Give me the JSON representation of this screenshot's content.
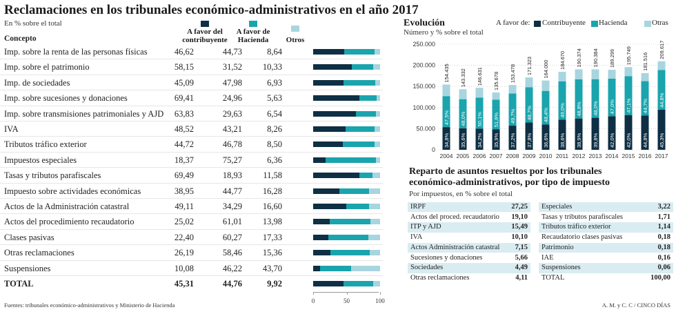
{
  "title": "Reclamaciones en los tribunales económico-administrativos en el año 2017",
  "subtitle": "En % sobre el total",
  "colors": {
    "contribuyente": "#0e2f44",
    "hacienda": "#1aa4ad",
    "otras": "#a8d5df",
    "rowalt": "#d9ecf1"
  },
  "headers": {
    "concepto": "Concepto",
    "contribuyente": "A favor del contribuyente",
    "hacienda": "A favor de Hacienda",
    "otros": "Otros"
  },
  "rows": [
    {
      "name": "Imp. sobre la renta de las personas físicas",
      "c": "46,62",
      "h": "44,73",
      "o": "8,64"
    },
    {
      "name": "Imp. sobre el patrimonio",
      "c": "58,15",
      "h": "31,52",
      "o": "10,33"
    },
    {
      "name": "Imp. de sociedades",
      "c": "45,09",
      "h": "47,98",
      "o": "6,93"
    },
    {
      "name": "Imp. sobre sucesiones y donaciones",
      "c": "69,41",
      "h": "24,96",
      "o": "5,63"
    },
    {
      "name": "Imp. sobre transmisiones patrimoniales y AJD",
      "c": "63,83",
      "h": "29,63",
      "o": "6,54"
    },
    {
      "name": "IVA",
      "c": "48,52",
      "h": "43,21",
      "o": "8,26"
    },
    {
      "name": "Tributos tráfico exterior",
      "c": "44,72",
      "h": "46,78",
      "o": "8,50"
    },
    {
      "name": "Impuestos especiales",
      "c": "18,37",
      "h": "75,27",
      "o": "6,36"
    },
    {
      "name": "Tasas y tributos parafiscales",
      "c": "69,49",
      "h": "18,93",
      "o": "11,58"
    },
    {
      "name": "Impuesto sobre actividades económicas",
      "c": "38,95",
      "h": "44,77",
      "o": "16,28"
    },
    {
      "name": "Actos de la Administración catastral",
      "c": "49,11",
      "h": "34,29",
      "o": "16,60"
    },
    {
      "name": "Actos del procedimiento recaudatorio",
      "c": "25,02",
      "h": "61,01",
      "o": "13,98"
    },
    {
      "name": "Clases pasivas",
      "c": "22,40",
      "h": "60,27",
      "o": "17,33"
    },
    {
      "name": "Otras reclamaciones",
      "c": "26,19",
      "h": "58,46",
      "o": "15,36"
    },
    {
      "name": "Suspensiones",
      "c": "10,08",
      "h": "46,22",
      "o": "43,70"
    },
    {
      "name": "TOTAL",
      "c": "45,31",
      "h": "44,76",
      "o": "9,92"
    }
  ],
  "chart_data": [
    {
      "type": "bar",
      "stacked": true,
      "orientation": "horizontal",
      "categories": [
        "Imp. sobre la renta de las personas físicas",
        "Imp. sobre el patrimonio",
        "Imp. de sociedades",
        "Imp. sobre sucesiones y donaciones",
        "Imp. sobre transmisiones patrimoniales y AJD",
        "IVA",
        "Tributos tráfico exterior",
        "Impuestos especiales",
        "Tasas y tributos parafiscales",
        "Impuesto sobre actividades económicas",
        "Actos de la Administración catastral",
        "Actos del procedimiento recaudatorio",
        "Clases pasivas",
        "Otras reclamaciones",
        "Suspensiones",
        "TOTAL"
      ],
      "series": [
        {
          "name": "A favor del contribuyente",
          "values": [
            46.62,
            58.15,
            45.09,
            69.41,
            63.83,
            48.52,
            44.72,
            18.37,
            69.49,
            38.95,
            49.11,
            25.02,
            22.4,
            26.19,
            10.08,
            45.31
          ]
        },
        {
          "name": "A favor de Hacienda",
          "values": [
            44.73,
            31.52,
            47.98,
            24.96,
            29.63,
            43.21,
            46.78,
            75.27,
            18.93,
            44.77,
            34.29,
            61.01,
            60.27,
            58.46,
            46.22,
            44.76
          ]
        },
        {
          "name": "Otros",
          "values": [
            8.64,
            10.33,
            6.93,
            5.63,
            6.54,
            8.26,
            8.5,
            6.36,
            11.58,
            16.28,
            16.6,
            13.98,
            17.33,
            15.36,
            43.7,
            9.92
          ]
        }
      ],
      "xlim": [
        0,
        100
      ],
      "xticks": [
        "0",
        "50",
        "100"
      ]
    },
    {
      "type": "bar",
      "stacked": true,
      "title": "Evolución",
      "subtitle": "Número y % sobre el total",
      "legend_title": "A favor de:",
      "legend": [
        "Contribuyente",
        "Hacienda",
        "Otras"
      ],
      "categories": [
        "2004",
        "2005",
        "2006",
        "2007",
        "2008",
        "2009",
        "2010",
        "2011",
        "2012",
        "2013",
        "2014",
        "2015",
        "2016",
        "2017"
      ],
      "totals": [
        154435,
        143332,
        146631,
        135678,
        153478,
        171323,
        164000,
        184670,
        190374,
        190384,
        189299,
        195749,
        181516,
        209617
      ],
      "totals_labels": [
        "154.435",
        "143.332",
        "146.631",
        "135.678",
        "153.478",
        "171.323",
        "164.000",
        "184.670",
        "190.374",
        "190.384",
        "189.299",
        "195.749",
        "181.516",
        "209.617"
      ],
      "contribuyente_pct": [
        34.8,
        35.6,
        34.2,
        35.9,
        37.2,
        37.8,
        36.6,
        38.6,
        38.9,
        39.8,
        42.0,
        42.0,
        44.8,
        45.3
      ],
      "contribuyente_labels": [
        "34,8%",
        "35,6%",
        "34,2%",
        "35,9%",
        "37,2%",
        "37,8%",
        "36,6%",
        "38,6%",
        "38,9%",
        "39,8%",
        "42,0%",
        "42,0%",
        "44,8%",
        "45,3%"
      ],
      "hacienda_pct": [
        47.5,
        48.0,
        50.1,
        51.6,
        49.7,
        48.7,
        48.4,
        49.0,
        48.8,
        48.0,
        47.0,
        47.1,
        44.7,
        44.8
      ],
      "hacienda_labels": [
        "47,5%",
        "48,0%",
        "50,1%",
        "51,6%",
        "49,7%",
        "48,7%",
        "48,4%",
        "49,0%",
        "48,8%",
        "48,0%",
        "47,0%",
        "47,1%",
        "44,7%",
        "44,8%"
      ],
      "ylim": [
        0,
        250000
      ],
      "yticks": [
        "0",
        "50.000",
        "100.000",
        "150.000",
        "200.000",
        "250.000"
      ]
    }
  ],
  "reparto": {
    "title": "Reparto de asuntos resueltos por los tribunales económico-administrativos, por tipo de impuesto",
    "subtitle": "Por impuestos, en % sobre el total",
    "left": [
      {
        "name": "IRPF",
        "value": "27,25"
      },
      {
        "name": "Actos del proced. recaudatorio",
        "value": "19,10"
      },
      {
        "name": "ITP y AJD",
        "value": "15,49"
      },
      {
        "name": "IVA",
        "value": "10,10"
      },
      {
        "name": "Actos Administración catastral",
        "value": "7,15"
      },
      {
        "name": "Sucesiones y donaciones",
        "value": "5,66"
      },
      {
        "name": "Sociedades",
        "value": "4,49"
      },
      {
        "name": "Otras reclamaciones",
        "value": "4,11"
      }
    ],
    "right": [
      {
        "name": "Especiales",
        "value": "3,22"
      },
      {
        "name": "Tasas y tributos parafiscales",
        "value": "1,71"
      },
      {
        "name": "Tributos tráfico exterior",
        "value": "1,14"
      },
      {
        "name": "Recaudatorio clases pasivas",
        "value": "0,18"
      },
      {
        "name": "Patrimonio",
        "value": "0,18"
      },
      {
        "name": "IAE",
        "value": "0,16"
      },
      {
        "name": "Suspensiones",
        "value": "0,06"
      },
      {
        "name": "TOTAL",
        "value": "100,00"
      }
    ]
  },
  "footer": {
    "source": "Fuentes: tribunales económico-administrativos y Ministerio de Hacienda",
    "credit": "A. M. y C. C / CINCO DÍAS"
  }
}
